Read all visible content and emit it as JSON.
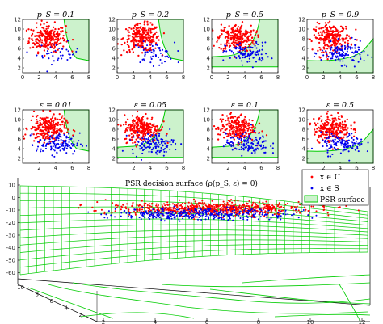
{
  "panels": [
    {
      "title": "p_S = 0.1",
      "row": 0,
      "col": 0,
      "blue": 0.15,
      "boundary": "right"
    },
    {
      "title": "p_S = 0.2",
      "row": 0,
      "col": 1,
      "blue": 0.25,
      "boundary": "right"
    },
    {
      "title": "p_S = 0.5",
      "row": 0,
      "col": 2,
      "blue": 0.45,
      "boundary": "curve"
    },
    {
      "title": "p_S = 0.9",
      "row": 0,
      "col": 3,
      "blue": 0.55,
      "boundary": "bottom"
    },
    {
      "title": "ε = 0.01",
      "row": 1,
      "col": 0,
      "blue": 0.55,
      "boundary": "right"
    },
    {
      "title": "ε = 0.05",
      "row": 1,
      "col": 1,
      "blue": 0.55,
      "boundary": "curve"
    },
    {
      "title": "ε = 0.1",
      "row": 1,
      "col": 2,
      "blue": 0.55,
      "boundary": "curve"
    },
    {
      "title": "ε = 0.5",
      "row": 1,
      "col": 3,
      "blue": 0.55,
      "boundary": "bottom"
    }
  ],
  "small_axes": {
    "x_ticks": [
      "0",
      "2",
      "4",
      "6",
      "8"
    ],
    "y_ticks": [
      "2",
      "4",
      "6",
      "8",
      "10",
      "12"
    ]
  },
  "big_plot": {
    "title": "PSR decision surface (ρ(p_S, ε) = 0)",
    "z_ticks": [
      "10",
      "0",
      "-10",
      "-20",
      "-30",
      "-40",
      "-50",
      "-60"
    ],
    "y_ticks": [
      "10",
      "8",
      "6",
      "4",
      "2"
    ],
    "x_ticks": [
      "2",
      "4",
      "6",
      "8",
      "10",
      "12"
    ],
    "legend": [
      "x ∈ U",
      "x ∈ S",
      "PSR surface"
    ]
  },
  "colors": {
    "red": "#ff0000",
    "blue": "#0000ee",
    "green": "#00cc00",
    "fill": "#ccf2cc"
  },
  "chart_data": {
    "type": "scatter",
    "title": "PSR decision surface (ρ(p_S, ε) = 0)",
    "series": [
      {
        "name": "x ∈ U",
        "center": [
          3,
          8
        ],
        "spread": [
          1.2,
          1.4
        ]
      },
      {
        "name": "x ∈ S",
        "center": [
          4.5,
          5
        ],
        "spread": [
          1.4,
          1.1
        ]
      }
    ],
    "xlim": [
      0,
      8
    ],
    "ylim": [
      1,
      12
    ],
    "grid": false,
    "legend": "top-right"
  }
}
